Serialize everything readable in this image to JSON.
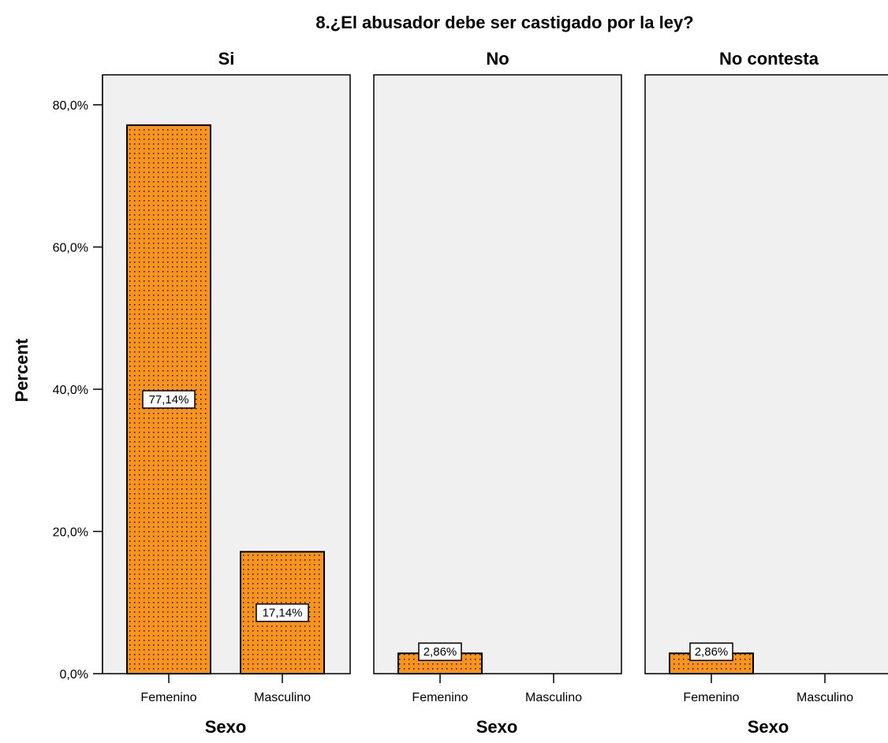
{
  "chart_data": {
    "type": "bar",
    "title": "8.¿El abusador debe ser castigado por la ley?",
    "ylabel": "Percent",
    "xlabel": "Sexo",
    "ylim": [
      0,
      84
    ],
    "yticks": [
      0,
      20,
      40,
      60,
      80
    ],
    "ytick_labels": [
      "0,0%",
      "20,0%",
      "40,0%",
      "60,0%",
      "80,0%"
    ],
    "categories": [
      "Femenino",
      "Masculino"
    ],
    "grid": false,
    "colors": {
      "bar_fill": "#F7931E",
      "panel_bg": "#F0F0F0",
      "bar_stroke": "#000000"
    },
    "panels": [
      {
        "title": "Si",
        "values": [
          77.14,
          17.14
        ],
        "labels": [
          "77,14%",
          "17,14%"
        ]
      },
      {
        "title": "No",
        "values": [
          2.86,
          null
        ],
        "labels": [
          "2,86%",
          ""
        ]
      },
      {
        "title": "No contesta",
        "values": [
          2.86,
          null
        ],
        "labels": [
          "2,86%",
          ""
        ]
      }
    ]
  }
}
